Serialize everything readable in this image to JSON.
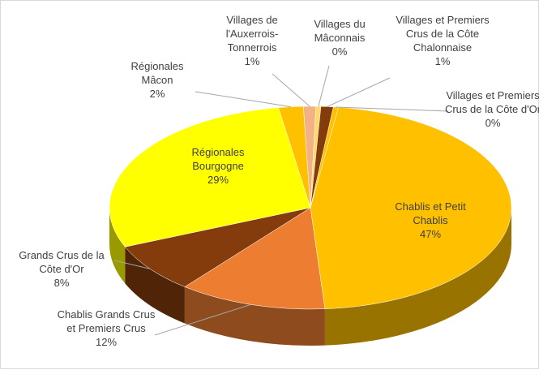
{
  "chart_data": {
    "type": "pie",
    "categories": [
      "Chablis et Petit Chablis",
      "Chablis Grands Crus et Premiers Crus",
      "Grands Crus de la Côte d'Or",
      "Régionales Bourgogne",
      "Régionales Mâcon",
      "Villages de l'Auxerrois-Tonnerrois",
      "Villages du Mâconnais",
      "Villages et Premiers Crus de la Côte Chalonnaise",
      "Villages et Premiers Crus de la Côte d'Or"
    ],
    "values": [
      47,
      12,
      8,
      29,
      2,
      1,
      0.4,
      1,
      0.4
    ],
    "value_labels": [
      "47%",
      "12%",
      "8%",
      "29%",
      "2%",
      "1%",
      "0%",
      "1%",
      "0%"
    ],
    "colors": [
      "#ffc000",
      "#ed7d31",
      "#843c0c",
      "#ffff00",
      "#ffc000",
      "#f4b183",
      "#ffd966",
      "#843c0c",
      "#ffc000"
    ]
  }
}
